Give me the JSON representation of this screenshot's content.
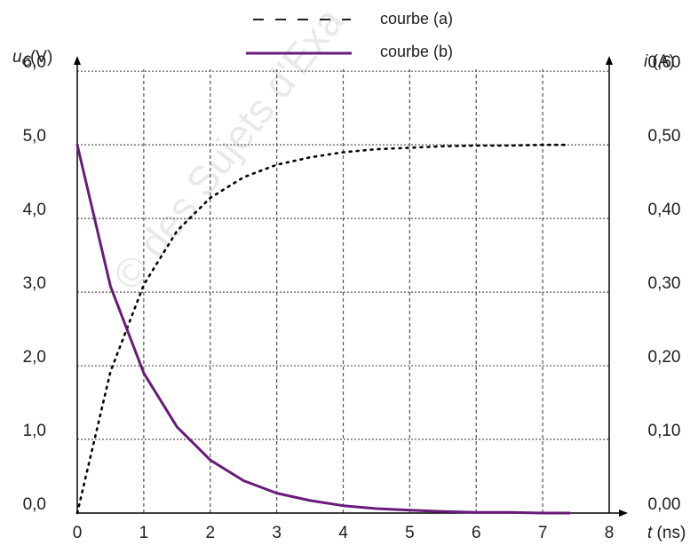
{
  "chart_data": {
    "type": "line",
    "x": [
      0,
      0.5,
      1,
      1.5,
      2,
      2.5,
      3,
      3.5,
      4,
      4.5,
      5,
      5.5,
      6,
      6.5,
      7,
      7.4
    ],
    "xlim": [
      0,
      8
    ],
    "ylim_left": [
      0,
      6.4
    ],
    "ylim_right": [
      0,
      0.64
    ],
    "x_ticks": [
      "0",
      "1",
      "2",
      "3",
      "4",
      "5",
      "6",
      "7",
      "8"
    ],
    "x_tick_values": [
      0,
      1,
      2,
      3,
      4,
      5,
      6,
      7,
      8
    ],
    "y_left_ticks": [
      "0,0",
      "1,0",
      "2,0",
      "3,0",
      "4,0",
      "5,0",
      "6,0"
    ],
    "y_left_tick_values": [
      0,
      1,
      2,
      3,
      4,
      5,
      6
    ],
    "y_right_ticks": [
      "0,00",
      "0,10",
      "0,20",
      "0,30",
      "0,40",
      "0,50",
      "0,60"
    ],
    "y_right_tick_values": [
      0,
      0.1,
      0.2,
      0.3,
      0.4,
      0.5,
      0.6
    ],
    "xlabel": "t (ns)",
    "ylabel_left": {
      "main": "u",
      "sub": "C",
      "unit": "(V)"
    },
    "ylabel_right": "i (A)",
    "grid": true,
    "legend_position": "top-center",
    "series": [
      {
        "name": "courbe (a)",
        "axis": "left",
        "style": "dotted",
        "color": "#000000",
        "values": [
          0,
          1.92,
          3.1,
          3.83,
          4.28,
          4.56,
          4.73,
          4.83,
          4.9,
          4.94,
          4.96,
          4.98,
          4.99,
          4.99,
          5.0,
          5.0
        ]
      },
      {
        "name": "courbe (b)",
        "axis": "right",
        "style": "solid",
        "color": "#6a1a7a",
        "values": [
          0.5,
          0.308,
          0.19,
          0.117,
          0.072,
          0.044,
          0.027,
          0.017,
          0.01,
          0.006,
          0.004,
          0.002,
          0.001,
          0.001,
          0.0,
          0.0
        ]
      }
    ]
  }
}
